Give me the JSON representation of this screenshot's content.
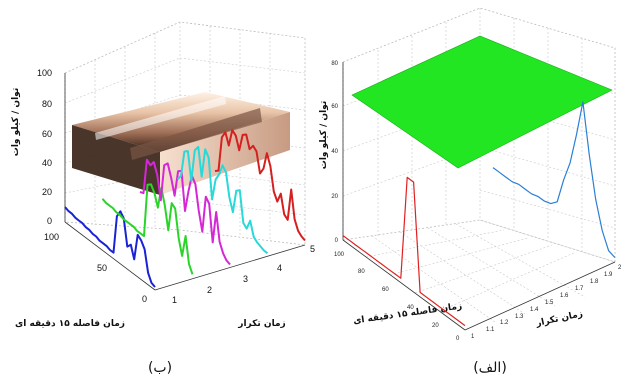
{
  "chart_data": [
    {
      "id": "b",
      "type": "line",
      "caption": "(ب)",
      "xlabel": "زمان تکرار",
      "ylabel": "زمان فاصله ۱۵ دقیقه ای",
      "zlabel": "توان / کیلو وات",
      "x_ticks": [
        "1",
        "2",
        "3",
        "4",
        "5"
      ],
      "y_ticks": [
        "0",
        "50",
        "100"
      ],
      "z_ticks": [
        "0",
        "20",
        "40",
        "60",
        "80",
        "100"
      ],
      "xlim": [
        1,
        5
      ],
      "ylim": [
        0,
        100
      ],
      "zlim": [
        0,
        100
      ],
      "surface": {
        "description_values": [
          25,
          25,
          25,
          25,
          25
        ],
        "colormap": "copper"
      },
      "series": [
        {
          "x": 1,
          "color": "#1a22d6",
          "values": [
            10,
            9,
            9,
            8,
            8,
            8,
            7,
            7,
            6,
            6,
            5,
            5,
            5,
            4,
            4,
            30,
            35,
            32,
            15,
            18,
            10,
            28,
            26,
            22,
            8,
            3,
            2
          ]
        },
        {
          "x": 2,
          "color": "#2bd42b",
          "values": [
            8,
            7,
            7,
            7,
            6,
            6,
            5,
            5,
            5,
            5,
            4,
            4,
            4,
            40,
            42,
            38,
            30,
            45,
            35,
            20,
            40,
            38,
            20,
            10,
            25,
            8,
            3
          ]
        },
        {
          "x": 3,
          "color": "#d627d6",
          "values": [
            5,
            6,
            30,
            28,
            32,
            25,
            10,
            35,
            38,
            30,
            20,
            38,
            40,
            15,
            30,
            42,
            38,
            22,
            10,
            35,
            32,
            8,
            30,
            12,
            6,
            3,
            2
          ]
        },
        {
          "x": 4,
          "color": "#27d9d9",
          "values": [
            6,
            10,
            28,
            30,
            12,
            34,
            38,
            20,
            40,
            36,
            10,
            25,
            30,
            38,
            35,
            20,
            12,
            28,
            30,
            10,
            8,
            15,
            6,
            4,
            3,
            2,
            2
          ]
        },
        {
          "x": 5,
          "color": "#d62020",
          "values": [
            4,
            6,
            30,
            35,
            28,
            40,
            38,
            30,
            42,
            44,
            36,
            40,
            38,
            25,
            30,
            42,
            35,
            20,
            15,
            22,
            10,
            8,
            30,
            12,
            6,
            4,
            3
          ]
        }
      ]
    },
    {
      "id": "alef",
      "type": "line",
      "caption": "(الف)",
      "xlabel": "زمان تکرار",
      "ylabel": "زمان فاصله ۱۵ دقیقه ای",
      "zlabel": "توان / کیلو وات",
      "x_ticks": [
        "1",
        "1.1",
        "1.2",
        "1.3",
        "1.4",
        "1.5",
        "1.6",
        "1.7",
        "1.8",
        "1.9",
        "2"
      ],
      "y_ticks": [
        "0",
        "20",
        "40",
        "60",
        "80",
        "100"
      ],
      "z_ticks": [
        "0",
        "20",
        "40",
        "60",
        "80"
      ],
      "xlim": [
        1,
        2
      ],
      "ylim": [
        0,
        100
      ],
      "zlim": [
        0,
        80
      ],
      "surface": {
        "level": 65,
        "color": "#22e622"
      },
      "series": [
        {
          "x": 1,
          "color": "#e02020",
          "values": [
            2,
            2,
            2,
            2,
            2,
            2,
            2,
            2,
            2,
            2,
            50,
            50,
            2,
            2,
            2,
            2,
            2,
            2,
            2,
            2
          ]
        },
        {
          "x": 2,
          "color": "#2a7fd4",
          "values": [
            2,
            2,
            2,
            2,
            3,
            3,
            3,
            4,
            4,
            5,
            8,
            20,
            30,
            45,
            62,
            40,
            22,
            10,
            3,
            2
          ]
        }
      ]
    }
  ]
}
